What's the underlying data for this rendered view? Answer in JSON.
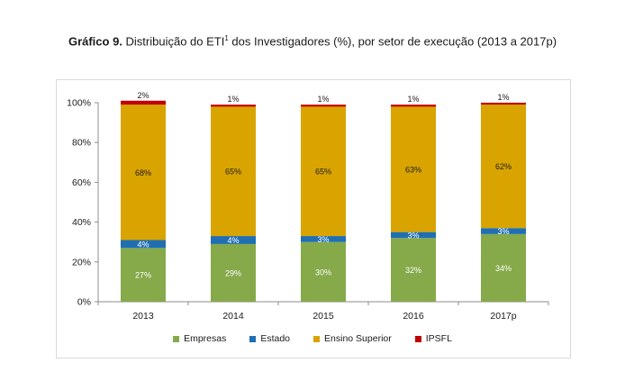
{
  "title": {
    "bold": "Gráfico 9.",
    "text_before_sup": " Distribuição do ETI",
    "sup": "1",
    "text_after_sup": " dos Investigadores (%), por setor de execução (2013 a 2017p)"
  },
  "chart_data": {
    "type": "bar",
    "stacked": true,
    "categories": [
      "2013",
      "2014",
      "2015",
      "2016",
      "2017p"
    ],
    "ylim": [
      0,
      100
    ],
    "yticks": [
      "0%",
      "20%",
      "40%",
      "60%",
      "80%",
      "100%"
    ],
    "grid": false,
    "legend_position": "bottom",
    "series": [
      {
        "name": "Empresas",
        "color": "#86a94a",
        "values": [
          27,
          29,
          30,
          32,
          34
        ],
        "labels": [
          "27%",
          "29%",
          "30%",
          "32%",
          "34%"
        ]
      },
      {
        "name": "Estado",
        "color": "#1f6fb2",
        "values": [
          4,
          4,
          3,
          3,
          3
        ],
        "labels": [
          "4%",
          "4%",
          "3%",
          "3%",
          "3%"
        ]
      },
      {
        "name": "Ensino Superior",
        "color": "#d9a400",
        "values": [
          68,
          65,
          65,
          63,
          62
        ],
        "labels": [
          "68%",
          "65%",
          "65%",
          "63%",
          "62%"
        ]
      },
      {
        "name": "IPSFL",
        "color": "#c00000",
        "values": [
          2,
          1,
          1,
          1,
          1
        ],
        "labels": [
          "2%",
          "1%",
          "1%",
          "1%",
          "1%"
        ]
      }
    ]
  }
}
